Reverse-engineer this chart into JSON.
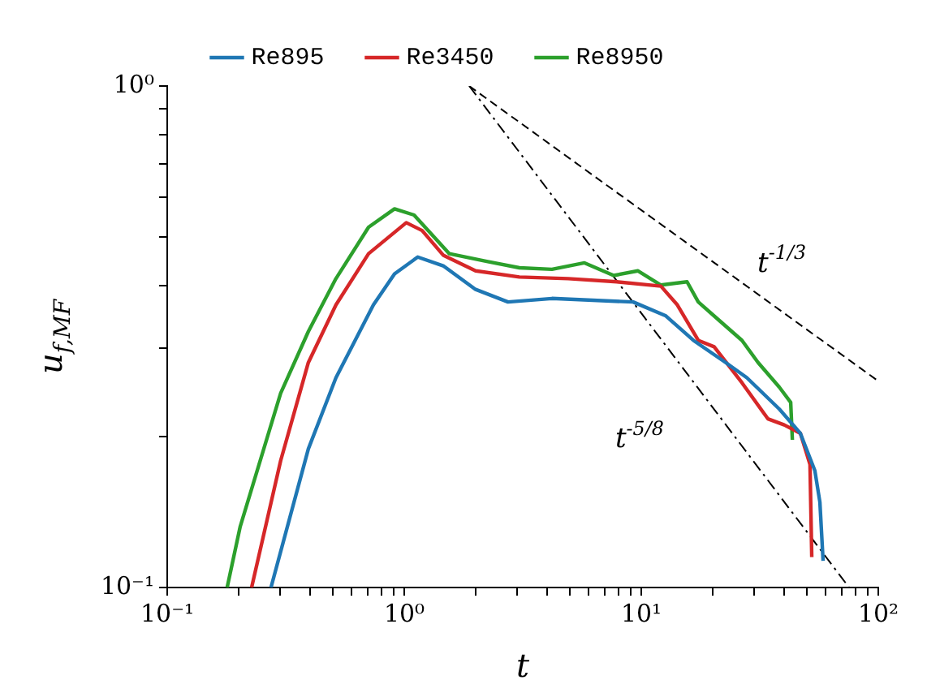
{
  "chart_data": {
    "type": "line",
    "xlabel": "t",
    "ylabel": "u$_{f,MF}$",
    "log": "xy",
    "grid": false,
    "legend": "top",
    "marker": "none",
    "xlim": [
      0.1,
      100
    ],
    "ylim": [
      0.1,
      1
    ],
    "xticks": [
      {
        "value": 0.1,
        "label": "10⁻¹"
      },
      {
        "value": 0.2,
        "label": null
      },
      {
        "value": 0.3,
        "label": null
      },
      {
        "value": 0.4,
        "label": null
      },
      {
        "value": 0.5,
        "label": null
      },
      {
        "value": 0.6,
        "label": null
      },
      {
        "value": 0.7,
        "label": null
      },
      {
        "value": 0.8,
        "label": null
      },
      {
        "value": 0.9,
        "label": null
      },
      {
        "value": 1,
        "label": "10⁰"
      },
      {
        "value": 2,
        "label": null
      },
      {
        "value": 3,
        "label": null
      },
      {
        "value": 4,
        "label": null
      },
      {
        "value": 5,
        "label": null
      },
      {
        "value": 6,
        "label": null
      },
      {
        "value": 7,
        "label": null
      },
      {
        "value": 8,
        "label": null
      },
      {
        "value": 9,
        "label": null
      },
      {
        "value": 10,
        "label": "10¹"
      },
      {
        "value": 20,
        "label": null
      },
      {
        "value": 30,
        "label": null
      },
      {
        "value": 40,
        "label": null
      },
      {
        "value": 50,
        "label": null
      },
      {
        "value": 60,
        "label": null
      },
      {
        "value": 70,
        "label": null
      },
      {
        "value": 80,
        "label": null
      },
      {
        "value": 90,
        "label": null
      },
      {
        "value": 100,
        "label": "10²"
      }
    ],
    "yticks": [
      {
        "value": 0.1,
        "label": "10⁻¹"
      },
      {
        "value": 0.2,
        "label": null
      },
      {
        "value": 0.3,
        "label": null
      },
      {
        "value": 0.4,
        "label": null
      },
      {
        "value": 0.5,
        "label": null
      },
      {
        "value": 0.6,
        "label": null
      },
      {
        "value": 0.7,
        "label": null
      },
      {
        "value": 0.8,
        "label": null
      },
      {
        "value": 0.9,
        "label": null
      },
      {
        "value": 1,
        "label": "10⁰"
      }
    ],
    "series": [
      {
        "name": "Re895",
        "color": "#1f77b4",
        "x": [
          0.274,
          0.394,
          0.515,
          0.741,
          0.91,
          1.14,
          1.46,
          2.0,
          2.74,
          4.2,
          9.24,
          12.7,
          16.6,
          22.7,
          27.9,
          38.2,
          46.9,
          54.0,
          56.7,
          58.5
        ],
        "values": [
          0.1,
          0.189,
          0.262,
          0.366,
          0.422,
          0.456,
          0.438,
          0.393,
          0.371,
          0.377,
          0.371,
          0.348,
          0.311,
          0.281,
          0.262,
          0.227,
          0.203,
          0.171,
          0.148,
          0.113
        ]
      },
      {
        "name": "Re3450",
        "color": "#d62728",
        "x": [
          0.227,
          0.301,
          0.394,
          0.515,
          0.707,
          1.02,
          1.19,
          1.46,
          2.0,
          3.06,
          4.92,
          7.89,
          12.1,
          14.2,
          17.4,
          20.3,
          26.6,
          34.2,
          40.1,
          46.9,
          51.5,
          52.4
        ],
        "values": [
          0.1,
          0.179,
          0.281,
          0.366,
          0.463,
          0.534,
          0.515,
          0.46,
          0.428,
          0.416,
          0.413,
          0.407,
          0.399,
          0.366,
          0.311,
          0.302,
          0.256,
          0.217,
          0.211,
          0.203,
          0.176,
          0.115
        ]
      },
      {
        "name": "Re8950",
        "color": "#2ca02c",
        "x": [
          0.179,
          0.203,
          0.301,
          0.394,
          0.515,
          0.707,
          0.91,
          1.1,
          1.55,
          2.23,
          3.06,
          4.2,
          5.76,
          7.65,
          9.69,
          12.1,
          15.6,
          17.4,
          21.3,
          26.6,
          31.1,
          38.2,
          42.7,
          43.4
        ],
        "values": [
          0.1,
          0.132,
          0.244,
          0.324,
          0.413,
          0.523,
          0.569,
          0.553,
          0.463,
          0.447,
          0.434,
          0.431,
          0.444,
          0.419,
          0.428,
          0.401,
          0.407,
          0.371,
          0.341,
          0.311,
          0.281,
          0.251,
          0.234,
          0.197
        ]
      },
      {
        "color": "#000000",
        "line_style": "dashed",
        "x": [
          1.88,
          100
        ],
        "values": [
          1,
          0.258
        ]
      },
      {
        "color": "#000000",
        "line_style": "dashdot",
        "x": [
          1.88,
          75.3
        ],
        "values": [
          1,
          0.1
        ]
      }
    ],
    "annotations": [
      "t$^{-1/3}$",
      "t$^{-5/8}$"
    ]
  }
}
